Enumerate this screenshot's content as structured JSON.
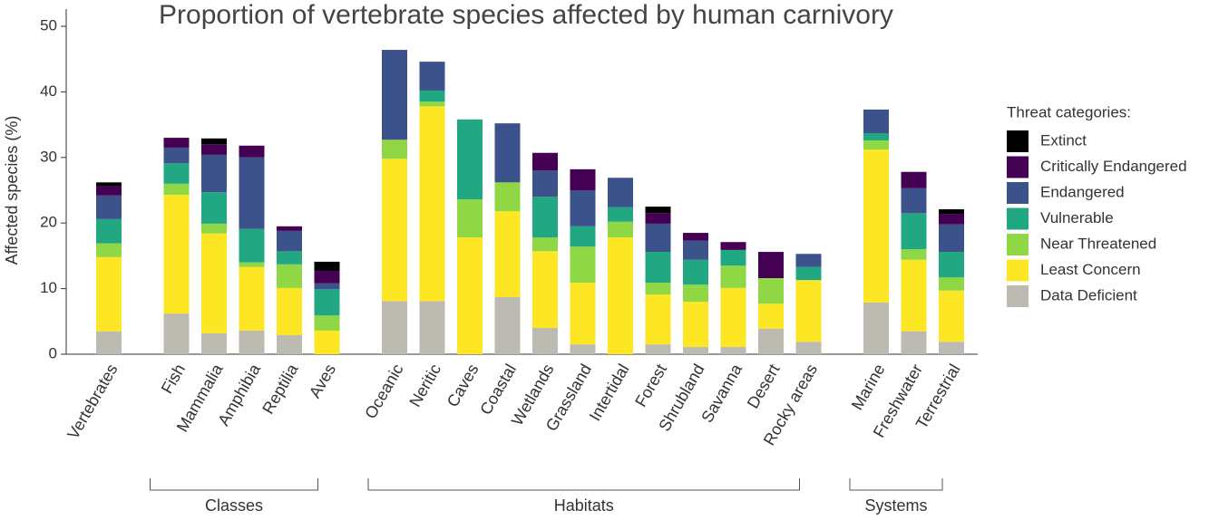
{
  "chart_data": {
    "type": "stacked-bar",
    "title": "Proportion of vertebrate species affected by human carnivory",
    "y_label": "Affected species (%)",
    "ylim": [
      0,
      50
    ],
    "yticks": [
      0,
      10,
      20,
      30,
      40,
      50
    ],
    "legend_title": "Threat categories:",
    "legend_position": "right",
    "categories": [
      "Vertebrates",
      "Fish",
      "Mammalia",
      "Amphibia",
      "Reptilia",
      "Aves",
      "Oceanic",
      "Neritic",
      "Caves",
      "Coastal",
      "Wetlands",
      "Grassland",
      "Intertidal",
      "Forest",
      "Shrubland",
      "Savanna",
      "Desert",
      "Rocky areas",
      "Marine",
      "Freshwater",
      "Terrestrial"
    ],
    "groups": [
      {
        "label": "Classes",
        "range": [
          1,
          5
        ]
      },
      {
        "label": "Habitats",
        "range": [
          6,
          17
        ]
      },
      {
        "label": "Systems",
        "range": [
          18,
          20
        ]
      }
    ],
    "series": [
      {
        "name": "Data Deficient",
        "color": "#bdbab2",
        "values": [
          3.5,
          6.2,
          3.2,
          3.6,
          2.9,
          0,
          8.1,
          8.1,
          0,
          8.7,
          4.0,
          1.5,
          0,
          1.5,
          1.1,
          1.1,
          3.9,
          1.9,
          7.9,
          3.5,
          1.9
        ]
      },
      {
        "name": "Least Concern",
        "color": "#fde725",
        "values": [
          11.3,
          18.1,
          15.2,
          9.7,
          7.2,
          3.6,
          21.7,
          29.7,
          17.8,
          13.1,
          11.7,
          9.4,
          17.8,
          7.6,
          6.9,
          9.0,
          3.8,
          9.4,
          23.3,
          10.9,
          7.8
        ]
      },
      {
        "name": "Near Threatened",
        "color": "#8fd744",
        "values": [
          2.1,
          1.7,
          1.5,
          0.7,
          3.6,
          2.3,
          2.9,
          0.7,
          5.8,
          4.4,
          2.1,
          5.5,
          2.4,
          1.8,
          2.6,
          3.4,
          3.9,
          0,
          1.4,
          1.6,
          2.0
        ]
      },
      {
        "name": "Vulnerable",
        "color": "#21a883",
        "values": [
          3.7,
          3.1,
          4.8,
          5.1,
          2.0,
          4.0,
          0,
          1.7,
          12.2,
          0,
          6.2,
          3.1,
          2.2,
          4.7,
          3.8,
          2.4,
          0,
          2.0,
          1.1,
          5.5,
          3.9
        ]
      },
      {
        "name": "Endangered",
        "color": "#3b528b",
        "values": [
          3.6,
          2.4,
          5.7,
          10.9,
          3.1,
          0.9,
          13.7,
          4.4,
          0,
          9.0,
          4.0,
          5.5,
          4.5,
          4.3,
          2.9,
          0,
          0,
          2.0,
          3.6,
          3.8,
          4.2
        ]
      },
      {
        "name": "Critically Endangered",
        "color": "#440154",
        "values": [
          1.4,
          1.5,
          1.6,
          1.8,
          0.7,
          1.9,
          0,
          0,
          0,
          0,
          2.7,
          3.2,
          0,
          1.6,
          1.2,
          1.2,
          4.0,
          0,
          0,
          2.5,
          1.6
        ]
      },
      {
        "name": "Extinct",
        "color": "#000000",
        "values": [
          0.6,
          0,
          0.9,
          0,
          0,
          1.4,
          0,
          0,
          0,
          0,
          0,
          0,
          0,
          1.0,
          0,
          0,
          0,
          0,
          0,
          0,
          0.7
        ]
      }
    ]
  }
}
